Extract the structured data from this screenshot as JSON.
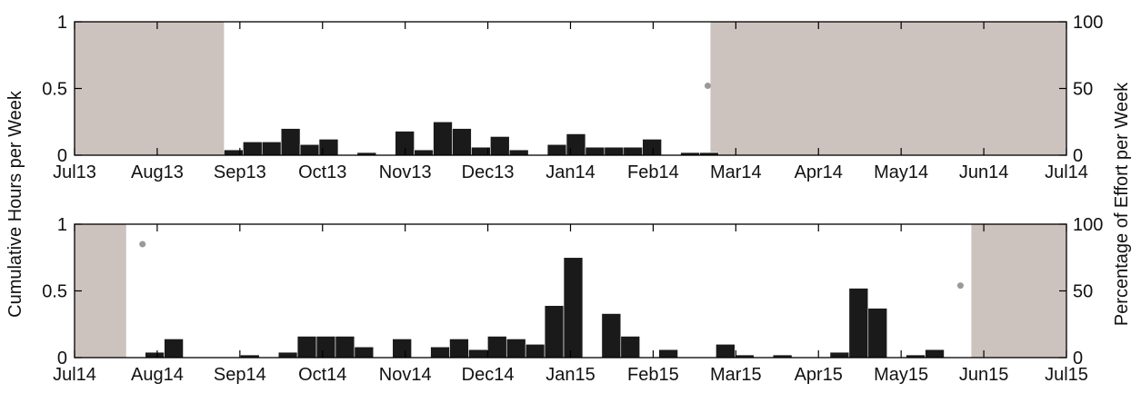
{
  "y_axis_left_label": "Cumulative Hours per Week",
  "y_axis_right_label": "Percentage of Effort per Week",
  "colors": {
    "bar": "#1a1a1a",
    "shade": "#cdc3be",
    "dot": "#9a9a9a",
    "axis": "#000000"
  },
  "chart_data": [
    {
      "type": "bar",
      "x_range": [
        "2013-07-01",
        "2014-07-01"
      ],
      "x_ticks": [
        "Jul13",
        "Aug13",
        "Sep13",
        "Oct13",
        "Nov13",
        "Dec13",
        "Jan14",
        "Feb14",
        "Mar14",
        "Apr14",
        "May14",
        "Jun14",
        "Jul14"
      ],
      "ylim": [
        0,
        1
      ],
      "y_ticks_left": [
        "0",
        "0.5",
        "1"
      ],
      "ylim_right": [
        0,
        100
      ],
      "y_ticks_right": [
        "0",
        "50",
        "100"
      ],
      "shaded_no_effort": [
        [
          "2013-07-01",
          "2013-08-25"
        ],
        [
          "2014-02-20",
          "2014-07-01"
        ]
      ],
      "bars": [
        {
          "start": "2013-08-25",
          "value": 0.04
        },
        {
          "start": "2013-09-01",
          "value": 0.1
        },
        {
          "start": "2013-09-08",
          "value": 0.1
        },
        {
          "start": "2013-09-15",
          "value": 0.2
        },
        {
          "start": "2013-09-22",
          "value": 0.08
        },
        {
          "start": "2013-09-29",
          "value": 0.12
        },
        {
          "start": "2013-10-13",
          "value": 0.02
        },
        {
          "start": "2013-10-27",
          "value": 0.18
        },
        {
          "start": "2013-11-03",
          "value": 0.04
        },
        {
          "start": "2013-11-10",
          "value": 0.25
        },
        {
          "start": "2013-11-17",
          "value": 0.2
        },
        {
          "start": "2013-11-24",
          "value": 0.06
        },
        {
          "start": "2013-12-01",
          "value": 0.14
        },
        {
          "start": "2013-12-08",
          "value": 0.04
        },
        {
          "start": "2013-12-22",
          "value": 0.08
        },
        {
          "start": "2013-12-29",
          "value": 0.16
        },
        {
          "start": "2014-01-05",
          "value": 0.06
        },
        {
          "start": "2014-01-12",
          "value": 0.06
        },
        {
          "start": "2014-01-19",
          "value": 0.06
        },
        {
          "start": "2014-01-26",
          "value": 0.12
        },
        {
          "start": "2014-02-09",
          "value": 0.02
        },
        {
          "start": "2014-02-16",
          "value": 0.02
        }
      ],
      "effort_points": [
        {
          "date": "2014-02-19",
          "value": 52
        }
      ]
    },
    {
      "type": "bar",
      "x_range": [
        "2014-07-01",
        "2015-07-01"
      ],
      "x_ticks": [
        "Jul14",
        "Aug14",
        "Sep14",
        "Oct14",
        "Nov14",
        "Dec14",
        "Jan15",
        "Feb15",
        "Mar15",
        "Apr15",
        "May15",
        "Jun15",
        "Jul15"
      ],
      "ylim": [
        0,
        1
      ],
      "y_ticks_left": [
        "0",
        "0.5",
        "1"
      ],
      "ylim_right": [
        0,
        100
      ],
      "y_ticks_right": [
        "0",
        "50",
        "100"
      ],
      "shaded_no_effort": [
        [
          "2014-07-01",
          "2014-07-20"
        ],
        [
          "2015-05-27",
          "2015-07-01"
        ]
      ],
      "bars": [
        {
          "start": "2014-07-27",
          "value": 0.04
        },
        {
          "start": "2014-08-03",
          "value": 0.14
        },
        {
          "start": "2014-08-31",
          "value": 0.02
        },
        {
          "start": "2014-09-14",
          "value": 0.04
        },
        {
          "start": "2014-09-21",
          "value": 0.16
        },
        {
          "start": "2014-09-28",
          "value": 0.16
        },
        {
          "start": "2014-10-05",
          "value": 0.16
        },
        {
          "start": "2014-10-12",
          "value": 0.08
        },
        {
          "start": "2014-10-26",
          "value": 0.14
        },
        {
          "start": "2014-11-09",
          "value": 0.08
        },
        {
          "start": "2014-11-16",
          "value": 0.14
        },
        {
          "start": "2014-11-23",
          "value": 0.06
        },
        {
          "start": "2014-11-30",
          "value": 0.16
        },
        {
          "start": "2014-12-07",
          "value": 0.14
        },
        {
          "start": "2014-12-14",
          "value": 0.1
        },
        {
          "start": "2014-12-21",
          "value": 0.39
        },
        {
          "start": "2014-12-28",
          "value": 0.75
        },
        {
          "start": "2015-01-11",
          "value": 0.33
        },
        {
          "start": "2015-01-18",
          "value": 0.16
        },
        {
          "start": "2015-02-01",
          "value": 0.06
        },
        {
          "start": "2015-02-22",
          "value": 0.1
        },
        {
          "start": "2015-03-01",
          "value": 0.02
        },
        {
          "start": "2015-03-15",
          "value": 0.02
        },
        {
          "start": "2015-04-05",
          "value": 0.04
        },
        {
          "start": "2015-04-12",
          "value": 0.52
        },
        {
          "start": "2015-04-19",
          "value": 0.37
        },
        {
          "start": "2015-05-03",
          "value": 0.02
        },
        {
          "start": "2015-05-10",
          "value": 0.06
        }
      ],
      "effort_points": [
        {
          "date": "2014-07-26",
          "value": 85
        },
        {
          "date": "2015-05-23",
          "value": 54
        }
      ]
    }
  ]
}
